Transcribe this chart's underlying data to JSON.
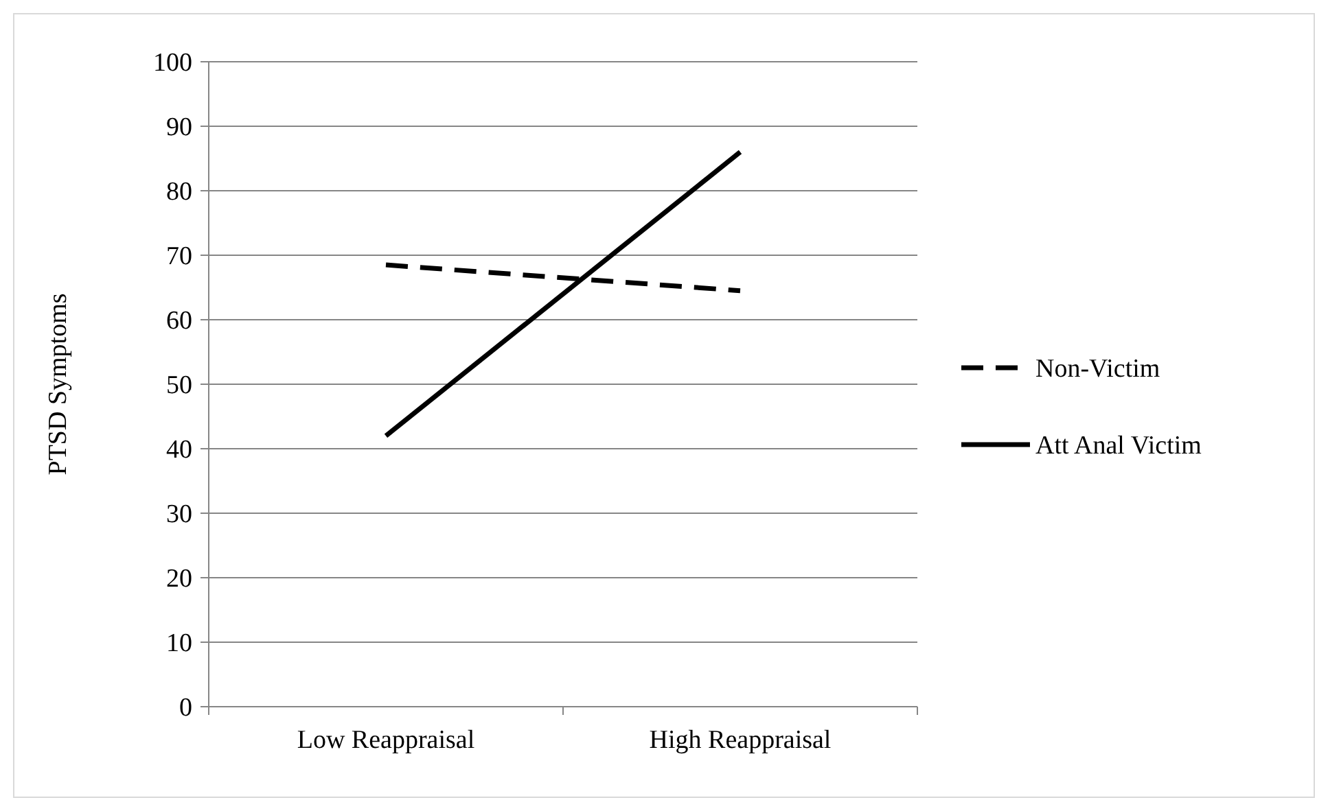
{
  "chart_data": {
    "type": "line",
    "ylabel": "PTSD Symptoms",
    "categories": [
      "Low Reappraisal",
      "High Reappraisal"
    ],
    "ylim": [
      0,
      100
    ],
    "yticks": [
      0,
      10,
      20,
      30,
      40,
      50,
      60,
      70,
      80,
      90,
      100
    ],
    "grid": "y",
    "legend": "right",
    "marker": "none",
    "series": [
      {
        "name": "Non-Victim",
        "color": "#000000",
        "line_style": "dashed",
        "values": [
          68.5,
          64.5
        ]
      },
      {
        "name": "Att Anal Victim",
        "color": "#000000",
        "line_style": "solid",
        "values": [
          42,
          86
        ]
      }
    ]
  }
}
